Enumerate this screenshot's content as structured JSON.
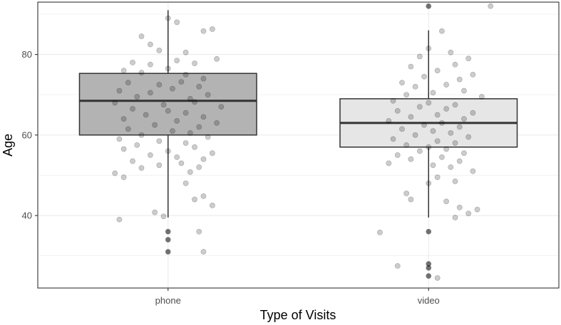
{
  "chart_data": {
    "type": "boxplot",
    "title": "",
    "xlabel": "Type of Visits",
    "ylabel": "Age",
    "ylim": [
      22,
      93
    ],
    "y_ticks": [
      40,
      60,
      80
    ],
    "grid": true,
    "colors": {
      "panel_border": "#333333",
      "grid": "#ebebeb",
      "box_line": "#333333",
      "points": "#000000"
    },
    "categories": [
      {
        "label": "phone",
        "fill": "#b3b3b3",
        "box": {
          "q1": 60,
          "median": 68.5,
          "q3": 75.3,
          "whisker_low": 39.5,
          "whisker_high": 91
        },
        "outliers": [
          36,
          34,
          31
        ],
        "points": [
          [
            -0.3,
            84.5
          ],
          [
            0.0,
            89.0
          ],
          [
            0.1,
            88.0
          ],
          [
            0.4,
            85.8
          ],
          [
            0.5,
            86.3
          ],
          [
            -0.2,
            82.5
          ],
          [
            -0.1,
            81.0
          ],
          [
            0.2,
            80.5
          ],
          [
            -0.4,
            78.0
          ],
          [
            -0.2,
            77.5
          ],
          [
            0.1,
            78.5
          ],
          [
            0.3,
            77.8
          ],
          [
            0.55,
            78.9
          ],
          [
            -0.5,
            76.0
          ],
          [
            -0.3,
            75.5
          ],
          [
            0.0,
            76.5
          ],
          [
            0.2,
            75.0
          ],
          [
            0.4,
            74.0
          ],
          [
            -0.45,
            73.0
          ],
          [
            -0.1,
            72.5
          ],
          [
            0.15,
            73.2
          ],
          [
            0.35,
            72.0
          ],
          [
            -0.55,
            71.0
          ],
          [
            -0.2,
            70.5
          ],
          [
            0.05,
            71.5
          ],
          [
            0.45,
            70.0
          ],
          [
            -0.35,
            69.5
          ],
          [
            0.25,
            69.0
          ],
          [
            -0.6,
            68.0
          ],
          [
            -0.05,
            67.5
          ],
          [
            0.3,
            68.2
          ],
          [
            0.6,
            67.0
          ],
          [
            -0.4,
            66.5
          ],
          [
            0.0,
            66.0
          ],
          [
            0.2,
            65.5
          ],
          [
            -0.25,
            65.0
          ],
          [
            0.4,
            64.5
          ],
          [
            -0.5,
            64.0
          ],
          [
            0.1,
            63.5
          ],
          [
            -0.15,
            62.5
          ],
          [
            0.35,
            62.0
          ],
          [
            0.55,
            63.0
          ],
          [
            -0.45,
            61.5
          ],
          [
            0.05,
            61.0
          ],
          [
            0.25,
            60.5
          ],
          [
            -0.3,
            60.0
          ],
          [
            0.45,
            59.5
          ],
          [
            -0.55,
            59.0
          ],
          [
            -0.1,
            58.5
          ],
          [
            0.2,
            58.0
          ],
          [
            -0.35,
            57.5
          ],
          [
            0.3,
            57.0
          ],
          [
            -0.5,
            56.5
          ],
          [
            0.0,
            56.0
          ],
          [
            0.5,
            55.5
          ],
          [
            -0.2,
            55.0
          ],
          [
            0.1,
            54.5
          ],
          [
            0.4,
            54.0
          ],
          [
            -0.4,
            53.5
          ],
          [
            0.15,
            53.0
          ],
          [
            -0.1,
            52.5
          ],
          [
            0.35,
            52.0
          ],
          [
            -0.3,
            51.8
          ],
          [
            -0.6,
            50.5
          ],
          [
            0.25,
            50.8
          ],
          [
            -0.5,
            49.5
          ],
          [
            0.2,
            48.0
          ],
          [
            0.4,
            44.8
          ],
          [
            0.3,
            44.0
          ],
          [
            0.5,
            42.5
          ],
          [
            -0.15,
            40.8
          ],
          [
            -0.05,
            39.8
          ],
          [
            -0.55,
            39.0
          ],
          [
            0.35,
            36.0
          ],
          [
            0.4,
            31.0
          ]
        ]
      },
      {
        "label": "video",
        "fill": "#e6e6e6",
        "box": {
          "q1": 57,
          "median": 63,
          "q3": 69,
          "whisker_low": 39.5,
          "whisker_high": 86
        },
        "outliers": [
          92,
          36,
          28,
          27,
          25
        ],
        "points": [
          [
            0.7,
            92.0
          ],
          [
            0.15,
            85.8
          ],
          [
            0.0,
            81.5
          ],
          [
            0.25,
            80.5
          ],
          [
            -0.1,
            79.5
          ],
          [
            0.45,
            79.0
          ],
          [
            0.3,
            77.5
          ],
          [
            -0.2,
            77.0
          ],
          [
            0.1,
            76.0
          ],
          [
            0.5,
            75.0
          ],
          [
            -0.05,
            74.5
          ],
          [
            0.35,
            73.8
          ],
          [
            -0.3,
            73.0
          ],
          [
            0.2,
            72.5
          ],
          [
            -0.15,
            72.0
          ],
          [
            0.4,
            71.0
          ],
          [
            0.05,
            70.5
          ],
          [
            -0.25,
            70.0
          ],
          [
            0.6,
            69.5
          ],
          [
            -0.4,
            68.5
          ],
          [
            0.0,
            68.0
          ],
          [
            0.3,
            67.5
          ],
          [
            -0.1,
            67.0
          ],
          [
            0.2,
            66.5
          ],
          [
            -0.35,
            66.0
          ],
          [
            0.5,
            65.5
          ],
          [
            0.1,
            65.0
          ],
          [
            -0.2,
            64.5
          ],
          [
            0.4,
            64.0
          ],
          [
            -0.45,
            63.5
          ],
          [
            0.15,
            63.0
          ],
          [
            -0.05,
            62.5
          ],
          [
            0.35,
            62.0
          ],
          [
            -0.3,
            61.5
          ],
          [
            0.05,
            61.0
          ],
          [
            0.25,
            60.5
          ],
          [
            -0.15,
            60.0
          ],
          [
            0.45,
            59.5
          ],
          [
            -0.4,
            59.0
          ],
          [
            0.1,
            58.5
          ],
          [
            0.3,
            58.0
          ],
          [
            -0.25,
            57.5
          ],
          [
            0.0,
            57.0
          ],
          [
            0.2,
            56.5
          ],
          [
            -0.1,
            56.0
          ],
          [
            0.4,
            55.5
          ],
          [
            -0.35,
            55.0
          ],
          [
            0.15,
            54.5
          ],
          [
            -0.2,
            54.0
          ],
          [
            0.35,
            53.5
          ],
          [
            -0.45,
            53.0
          ],
          [
            0.05,
            52.5
          ],
          [
            0.25,
            52.0
          ],
          [
            0.5,
            51.0
          ],
          [
            0.1,
            49.5
          ],
          [
            0.3,
            48.5
          ],
          [
            0.0,
            48.0
          ],
          [
            -0.25,
            45.5
          ],
          [
            -0.2,
            44.0
          ],
          [
            0.2,
            43.5
          ],
          [
            0.35,
            42.0
          ],
          [
            0.55,
            41.5
          ],
          [
            0.45,
            40.5
          ],
          [
            0.3,
            39.5
          ],
          [
            -0.55,
            35.8
          ],
          [
            -0.35,
            27.5
          ],
          [
            0.1,
            24.5
          ]
        ]
      }
    ]
  }
}
